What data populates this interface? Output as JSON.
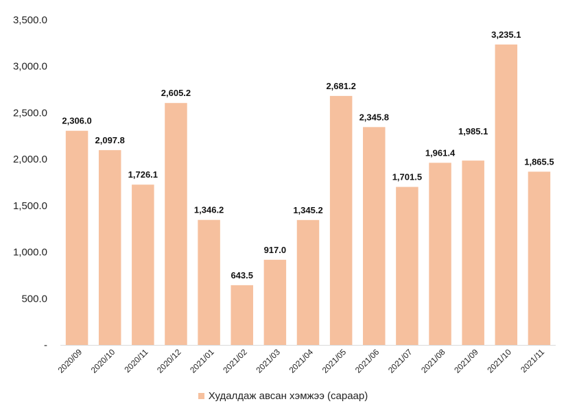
{
  "chart_data": {
    "type": "bar",
    "categories": [
      "2020/09",
      "2020/10",
      "2020/11",
      "2020/12",
      "2021/01",
      "2021/02",
      "2021/03",
      "2021/04",
      "2021/05",
      "2021/06",
      "2021/07",
      "2021/08",
      "2021/09",
      "2021/10",
      "2021/11"
    ],
    "series": [
      {
        "name": "Худалдаж авсан хэмжээ (сараар)",
        "values": [
          2306.0,
          2097.8,
          1726.1,
          2605.2,
          1346.2,
          643.5,
          917.0,
          1345.2,
          2681.2,
          2345.8,
          1701.5,
          1961.4,
          1985.1,
          3235.1,
          1865.5
        ],
        "data_labels": [
          "2,306.0",
          "2,097.8",
          "1,726.1",
          "2,605.2",
          "1,346.2",
          "643.5",
          "917.0",
          "1,345.2",
          "2,681.2",
          "2,345.8",
          "1,701.5",
          "1,961.4",
          "1,985.1",
          "3,235.1",
          "1,865.5"
        ],
        "color": "#F6C09E"
      }
    ],
    "ylim": [
      0,
      3500
    ],
    "yticks": [
      0,
      500,
      1000,
      1500,
      2000,
      2500,
      3000,
      3500
    ],
    "ytick_labels": [
      "-",
      "500.0",
      "1,000.0",
      "1,500.0",
      "2,000.0",
      "2,500.0",
      "3,000.0",
      "3,500.0"
    ],
    "grid": false,
    "legend_position": "bottom",
    "title": "",
    "xlabel": "",
    "ylabel": ""
  }
}
